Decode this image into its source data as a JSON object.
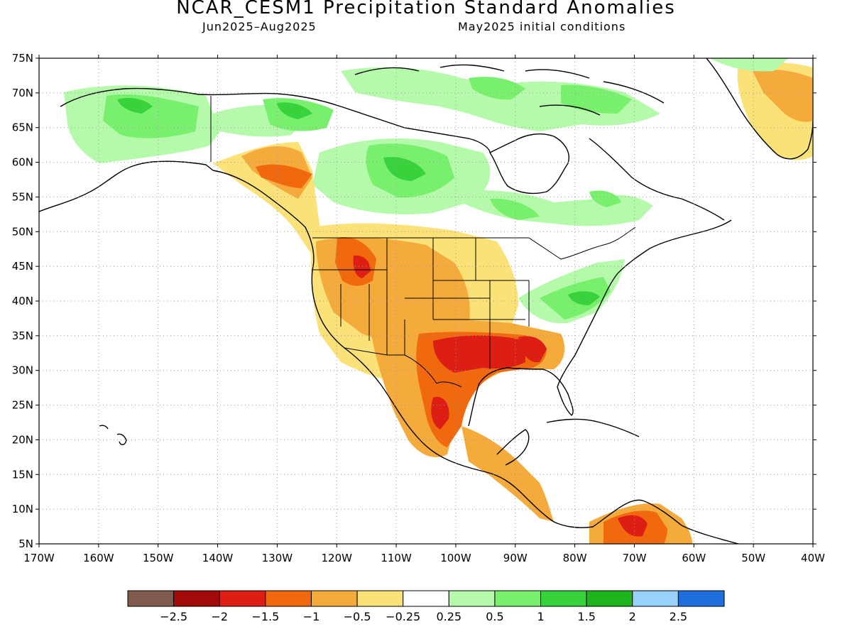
{
  "title": "NCAR_CESM1 Precipitation Standard Anomalies",
  "subtitle_left": "Jun2025–Aug2025",
  "subtitle_right": "May2025 initial conditions",
  "axes": {
    "lat_labels": [
      "75N",
      "70N",
      "65N",
      "60N",
      "55N",
      "50N",
      "45N",
      "40N",
      "35N",
      "30N",
      "25N",
      "20N",
      "15N",
      "10N",
      "5N"
    ],
    "lon_labels": [
      "170W",
      "160W",
      "150W",
      "140W",
      "130W",
      "120W",
      "110W",
      "100W",
      "90W",
      "80W",
      "70W",
      "60W",
      "50W",
      "40W"
    ],
    "lat_range": [
      5,
      75
    ],
    "lon_range": [
      -170,
      -40
    ],
    "grid": "dotted"
  },
  "colorbar": {
    "colors": [
      "#7f5a4d",
      "#a50a0a",
      "#dc1e14",
      "#f0690f",
      "#f5aa3c",
      "#fae178",
      "#ffffff",
      "#b4faaa",
      "#78f06e",
      "#37d23c",
      "#1eb41e",
      "#96d2fa",
      "#1e6edc"
    ],
    "labels": [
      "−2.5",
      "−2",
      "−1.5",
      "−1",
      "−0.5",
      "−0.25",
      "0.25",
      "0.5",
      "1",
      "1.5",
      "2",
      "2.5"
    ]
  },
  "colors": {
    "land_dry_strong": "#dc1e14",
    "land_dry": "#f0690f",
    "land_dry_mod": "#f5aa3c",
    "land_dry_weak": "#fae178",
    "land_wet_weak": "#b4faaa",
    "land_wet": "#78f06e",
    "land_wet_mod": "#37d23c"
  }
}
